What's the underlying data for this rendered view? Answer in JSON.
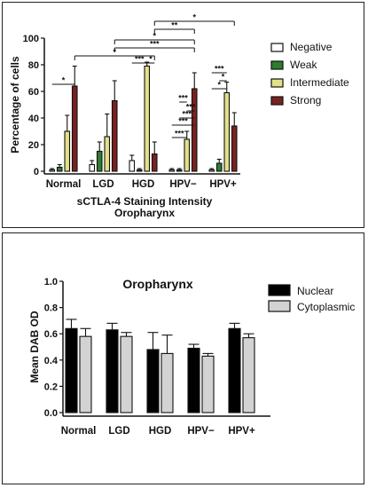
{
  "chart_data": [
    {
      "type": "bar",
      "title": "",
      "xlabel": "sCTLA-4 Staining Intensity\nOropharynx",
      "ylabel": "Percentage of cells",
      "ylim": [
        0,
        100
      ],
      "yticks": [
        "0",
        "20",
        "40",
        "60",
        "80",
        "100"
      ],
      "categories": [
        "Normal",
        "LGD",
        "HGD",
        "HPV−",
        "HPV+"
      ],
      "legend_position": "right",
      "grid": false,
      "series": [
        {
          "name": "Negative",
          "color": "#ffffff",
          "values": [
            1,
            5,
            8,
            1,
            1
          ],
          "errors": [
            1,
            3,
            4,
            1,
            1
          ]
        },
        {
          "name": "Weak",
          "color": "#2e7d2e",
          "values": [
            3,
            15,
            1,
            1,
            6
          ],
          "errors": [
            2,
            7,
            1,
            1,
            3
          ]
        },
        {
          "name": "Intermediate",
          "color": "#e3e088",
          "values": [
            30,
            26,
            79,
            24,
            59
          ],
          "errors": [
            12,
            17,
            3,
            6,
            8
          ]
        },
        {
          "name": "Strong",
          "color": "#7a2222",
          "values": [
            64,
            53,
            13,
            62,
            34
          ],
          "errors": [
            15,
            15,
            9,
            12,
            10
          ]
        }
      ],
      "annotations": [
        {
          "text": "*"
        },
        {
          "text": "***"
        },
        {
          "text": "*"
        },
        {
          "text": "***"
        },
        {
          "text": "***"
        },
        {
          "text": "***"
        },
        {
          "text": "***"
        },
        {
          "text": "***"
        },
        {
          "text": "*"
        },
        {
          "text": "*"
        },
        {
          "text": "***"
        },
        {
          "text": "*"
        },
        {
          "text": "***"
        },
        {
          "text": "*"
        },
        {
          "text": "**"
        },
        {
          "text": "*"
        }
      ]
    },
    {
      "type": "bar",
      "title": "Oropharynx",
      "xlabel": "",
      "ylabel": "Mean DAB OD",
      "ylim": [
        0,
        1.0
      ],
      "yticks": [
        "0.0",
        "0.2",
        "0.4",
        "0.6",
        "0.8",
        "1.0"
      ],
      "categories": [
        "Normal",
        "LGD",
        "HGD",
        "HPV−",
        "HPV+"
      ],
      "legend_position": "top-right",
      "grid": false,
      "series": [
        {
          "name": "Nuclear",
          "color": "#000000",
          "values": [
            0.64,
            0.63,
            0.48,
            0.49,
            0.64
          ],
          "errors": [
            0.07,
            0.05,
            0.13,
            0.03,
            0.04
          ]
        },
        {
          "name": "Cytoplasmic",
          "color": "#d3d3d3",
          "values": [
            0.58,
            0.58,
            0.45,
            0.43,
            0.57
          ],
          "errors": [
            0.06,
            0.03,
            0.14,
            0.02,
            0.03
          ]
        }
      ]
    }
  ]
}
